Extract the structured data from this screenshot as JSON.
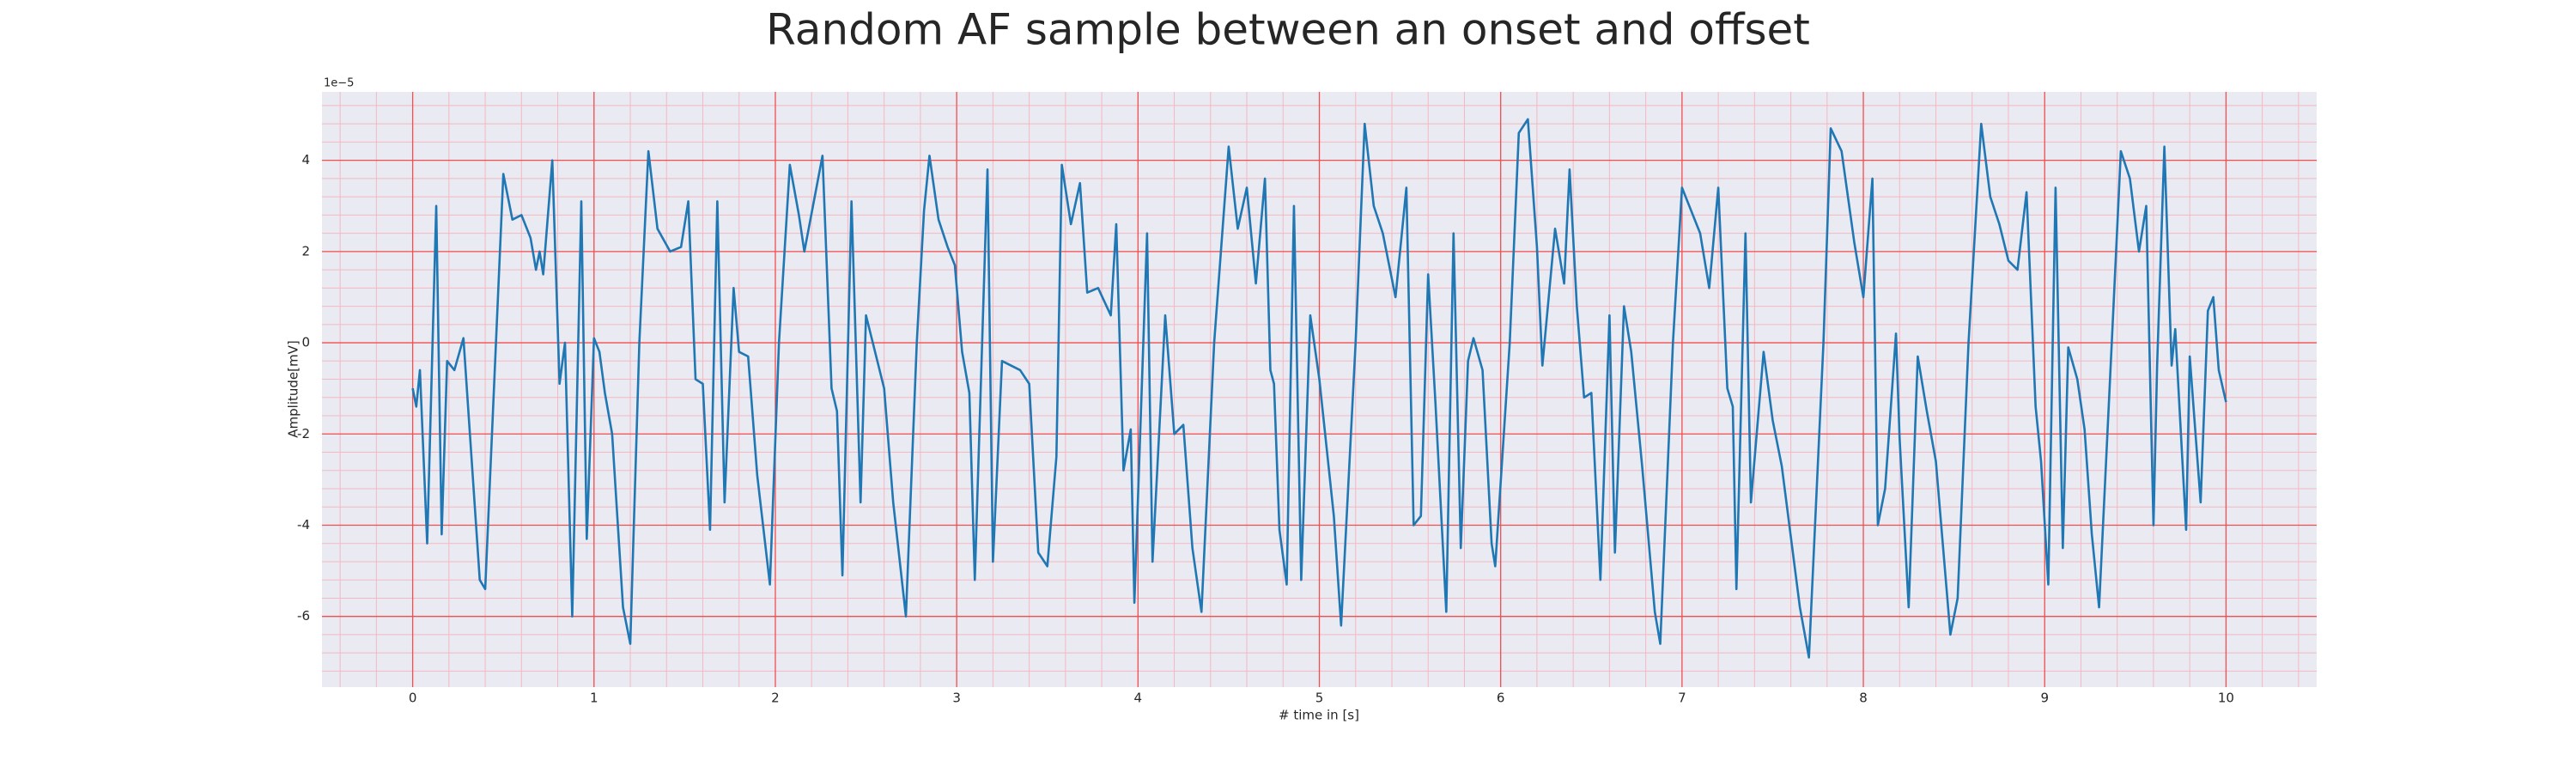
{
  "chart_data": {
    "type": "line",
    "title": "Random AF sample between an onset and offset",
    "x_label": "# time in [s]",
    "y_label": "Amplitude[mV]",
    "y_offset_label": "1e−5",
    "color": "#1f77b4",
    "grid": true,
    "minor_grid": true,
    "xlim": [
      -0.5,
      10.5
    ],
    "ylim": [
      -7.55,
      5.5
    ],
    "xticks": [
      0,
      1,
      2,
      3,
      4,
      5,
      6,
      7,
      8,
      9,
      10
    ],
    "yticks": [
      -6,
      -4,
      -2,
      0,
      2,
      4
    ],
    "x": [
      0,
      0.02,
      0.04,
      0.08,
      0.13,
      0.16,
      0.19,
      0.23,
      0.28,
      0.37,
      0.4,
      0.5,
      0.55,
      0.6,
      0.65,
      0.68,
      0.7,
      0.72,
      0.77,
      0.81,
      0.84,
      0.88,
      0.93,
      0.96,
      1.0,
      1.03,
      1.06,
      1.1,
      1.16,
      1.2,
      1.25,
      1.3,
      1.35,
      1.42,
      1.48,
      1.52,
      1.56,
      1.6,
      1.64,
      1.68,
      1.72,
      1.77,
      1.8,
      1.85,
      1.9,
      1.97,
      2.02,
      2.08,
      2.13,
      2.16,
      2.26,
      2.31,
      2.34,
      2.37,
      2.42,
      2.47,
      2.5,
      2.55,
      2.6,
      2.65,
      2.72,
      2.78,
      2.82,
      2.85,
      2.9,
      2.95,
      2.99,
      3.03,
      3.07,
      3.1,
      3.17,
      3.2,
      3.25,
      3.35,
      3.4,
      3.45,
      3.5,
      3.55,
      3.58,
      3.63,
      3.68,
      3.72,
      3.78,
      3.85,
      3.88,
      3.92,
      3.96,
      3.98,
      4.05,
      4.08,
      4.15,
      4.2,
      4.25,
      4.3,
      4.35,
      4.42,
      4.5,
      4.55,
      4.6,
      4.65,
      4.7,
      4.73,
      4.75,
      4.78,
      4.82,
      4.86,
      4.9,
      4.95,
      5.0,
      5.08,
      5.12,
      5.2,
      5.25,
      5.3,
      5.35,
      5.42,
      5.48,
      5.52,
      5.56,
      5.6,
      5.64,
      5.7,
      5.74,
      5.78,
      5.82,
      5.85,
      5.9,
      5.95,
      5.97,
      6.05,
      6.1,
      6.15,
      6.2,
      6.23,
      6.3,
      6.35,
      6.38,
      6.42,
      6.46,
      6.5,
      6.55,
      6.6,
      6.63,
      6.68,
      6.72,
      6.78,
      6.85,
      6.88,
      6.95,
      7.0,
      7.05,
      7.1,
      7.15,
      7.2,
      7.25,
      7.28,
      7.3,
      7.35,
      7.38,
      7.45,
      7.5,
      7.55,
      7.65,
      7.7,
      7.78,
      7.82,
      7.88,
      7.95,
      8.0,
      8.05,
      8.08,
      8.12,
      8.18,
      8.2,
      8.25,
      8.3,
      8.35,
      8.4,
      8.48,
      8.52,
      8.58,
      8.65,
      8.7,
      8.75,
      8.8,
      8.85,
      8.9,
      8.95,
      8.98,
      9.02,
      9.06,
      9.1,
      9.13,
      9.18,
      9.22,
      9.26,
      9.3,
      9.37,
      9.42,
      9.47,
      9.52,
      9.56,
      9.6,
      9.62,
      9.66,
      9.7,
      9.72,
      9.78,
      9.8,
      9.86,
      9.9,
      9.93,
      9.96,
      10
    ],
    "values": [
      -1.0,
      -1.4,
      -0.6,
      -4.4,
      3.0,
      -4.2,
      -0.4,
      -0.6,
      0.1,
      -5.2,
      -5.4,
      3.7,
      2.7,
      2.8,
      2.3,
      1.6,
      2.0,
      1.5,
      4.0,
      -0.9,
      0,
      -6.0,
      3.1,
      -4.3,
      0.1,
      -0.2,
      -1.1,
      -2.0,
      -5.8,
      -6.6,
      0,
      4.2,
      2.5,
      2.0,
      2.1,
      3.1,
      -0.8,
      -0.9,
      -4.1,
      3.1,
      -3.5,
      1.2,
      -0.2,
      -0.3,
      -2.9,
      -5.3,
      0,
      3.9,
      2.8,
      2.0,
      4.1,
      -1.0,
      -1.5,
      -5.1,
      3.1,
      -3.5,
      0.6,
      -0.2,
      -1.0,
      -3.5,
      -6.0,
      0,
      2.9,
      4.1,
      2.7,
      2.1,
      1.7,
      -0.2,
      -1.1,
      -5.2,
      3.8,
      -4.8,
      -0.4,
      -0.6,
      -0.9,
      -4.6,
      -4.9,
      -2.5,
      3.9,
      2.6,
      3.5,
      1.1,
      1.2,
      0.6,
      2.6,
      -2.8,
      -1.9,
      -5.7,
      2.4,
      -4.8,
      0.6,
      -2.0,
      -1.8,
      -4.5,
      -5.9,
      0,
      4.3,
      2.5,
      3.4,
      1.3,
      3.6,
      -0.6,
      -0.9,
      -4.1,
      -5.3,
      3.0,
      -5.2,
      0.6,
      -0.8,
      -3.8,
      -6.2,
      0,
      4.8,
      3.0,
      2.4,
      1.0,
      3.4,
      -4.0,
      -3.8,
      1.5,
      -1.3,
      -5.9,
      2.4,
      -4.5,
      -0.4,
      0.1,
      -0.6,
      -4.4,
      -4.9,
      0,
      4.6,
      4.9,
      2.1,
      -0.5,
      2.5,
      1.3,
      3.8,
      0.8,
      -1.2,
      -1.1,
      -5.2,
      0.6,
      -4.6,
      0.8,
      -0.2,
      -2.7,
      -5.9,
      -6.6,
      0,
      3.4,
      2.9,
      2.4,
      1.2,
      3.4,
      -1.0,
      -1.4,
      -5.4,
      2.4,
      -3.5,
      -0.2,
      -1.7,
      -2.7,
      -5.8,
      -6.9,
      0,
      4.7,
      4.2,
      2.2,
      1.0,
      3.6,
      -4.0,
      -3.2,
      0.2,
      -2.1,
      -5.8,
      -0.3,
      -1.5,
      -2.6,
      -6.4,
      -5.6,
      0,
      4.8,
      3.2,
      2.6,
      1.8,
      1.6,
      3.3,
      -1.4,
      -2.6,
      -5.3,
      3.4,
      -4.5,
      -0.1,
      -0.8,
      -1.9,
      -4.2,
      -5.8,
      0,
      4.2,
      3.6,
      2.0,
      3.0,
      -4.0,
      -0.5,
      4.3,
      -0.5,
      0.3,
      -4.1,
      -0.3,
      -3.5,
      0.7,
      1.0,
      -0.6,
      -1.3
    ]
  }
}
